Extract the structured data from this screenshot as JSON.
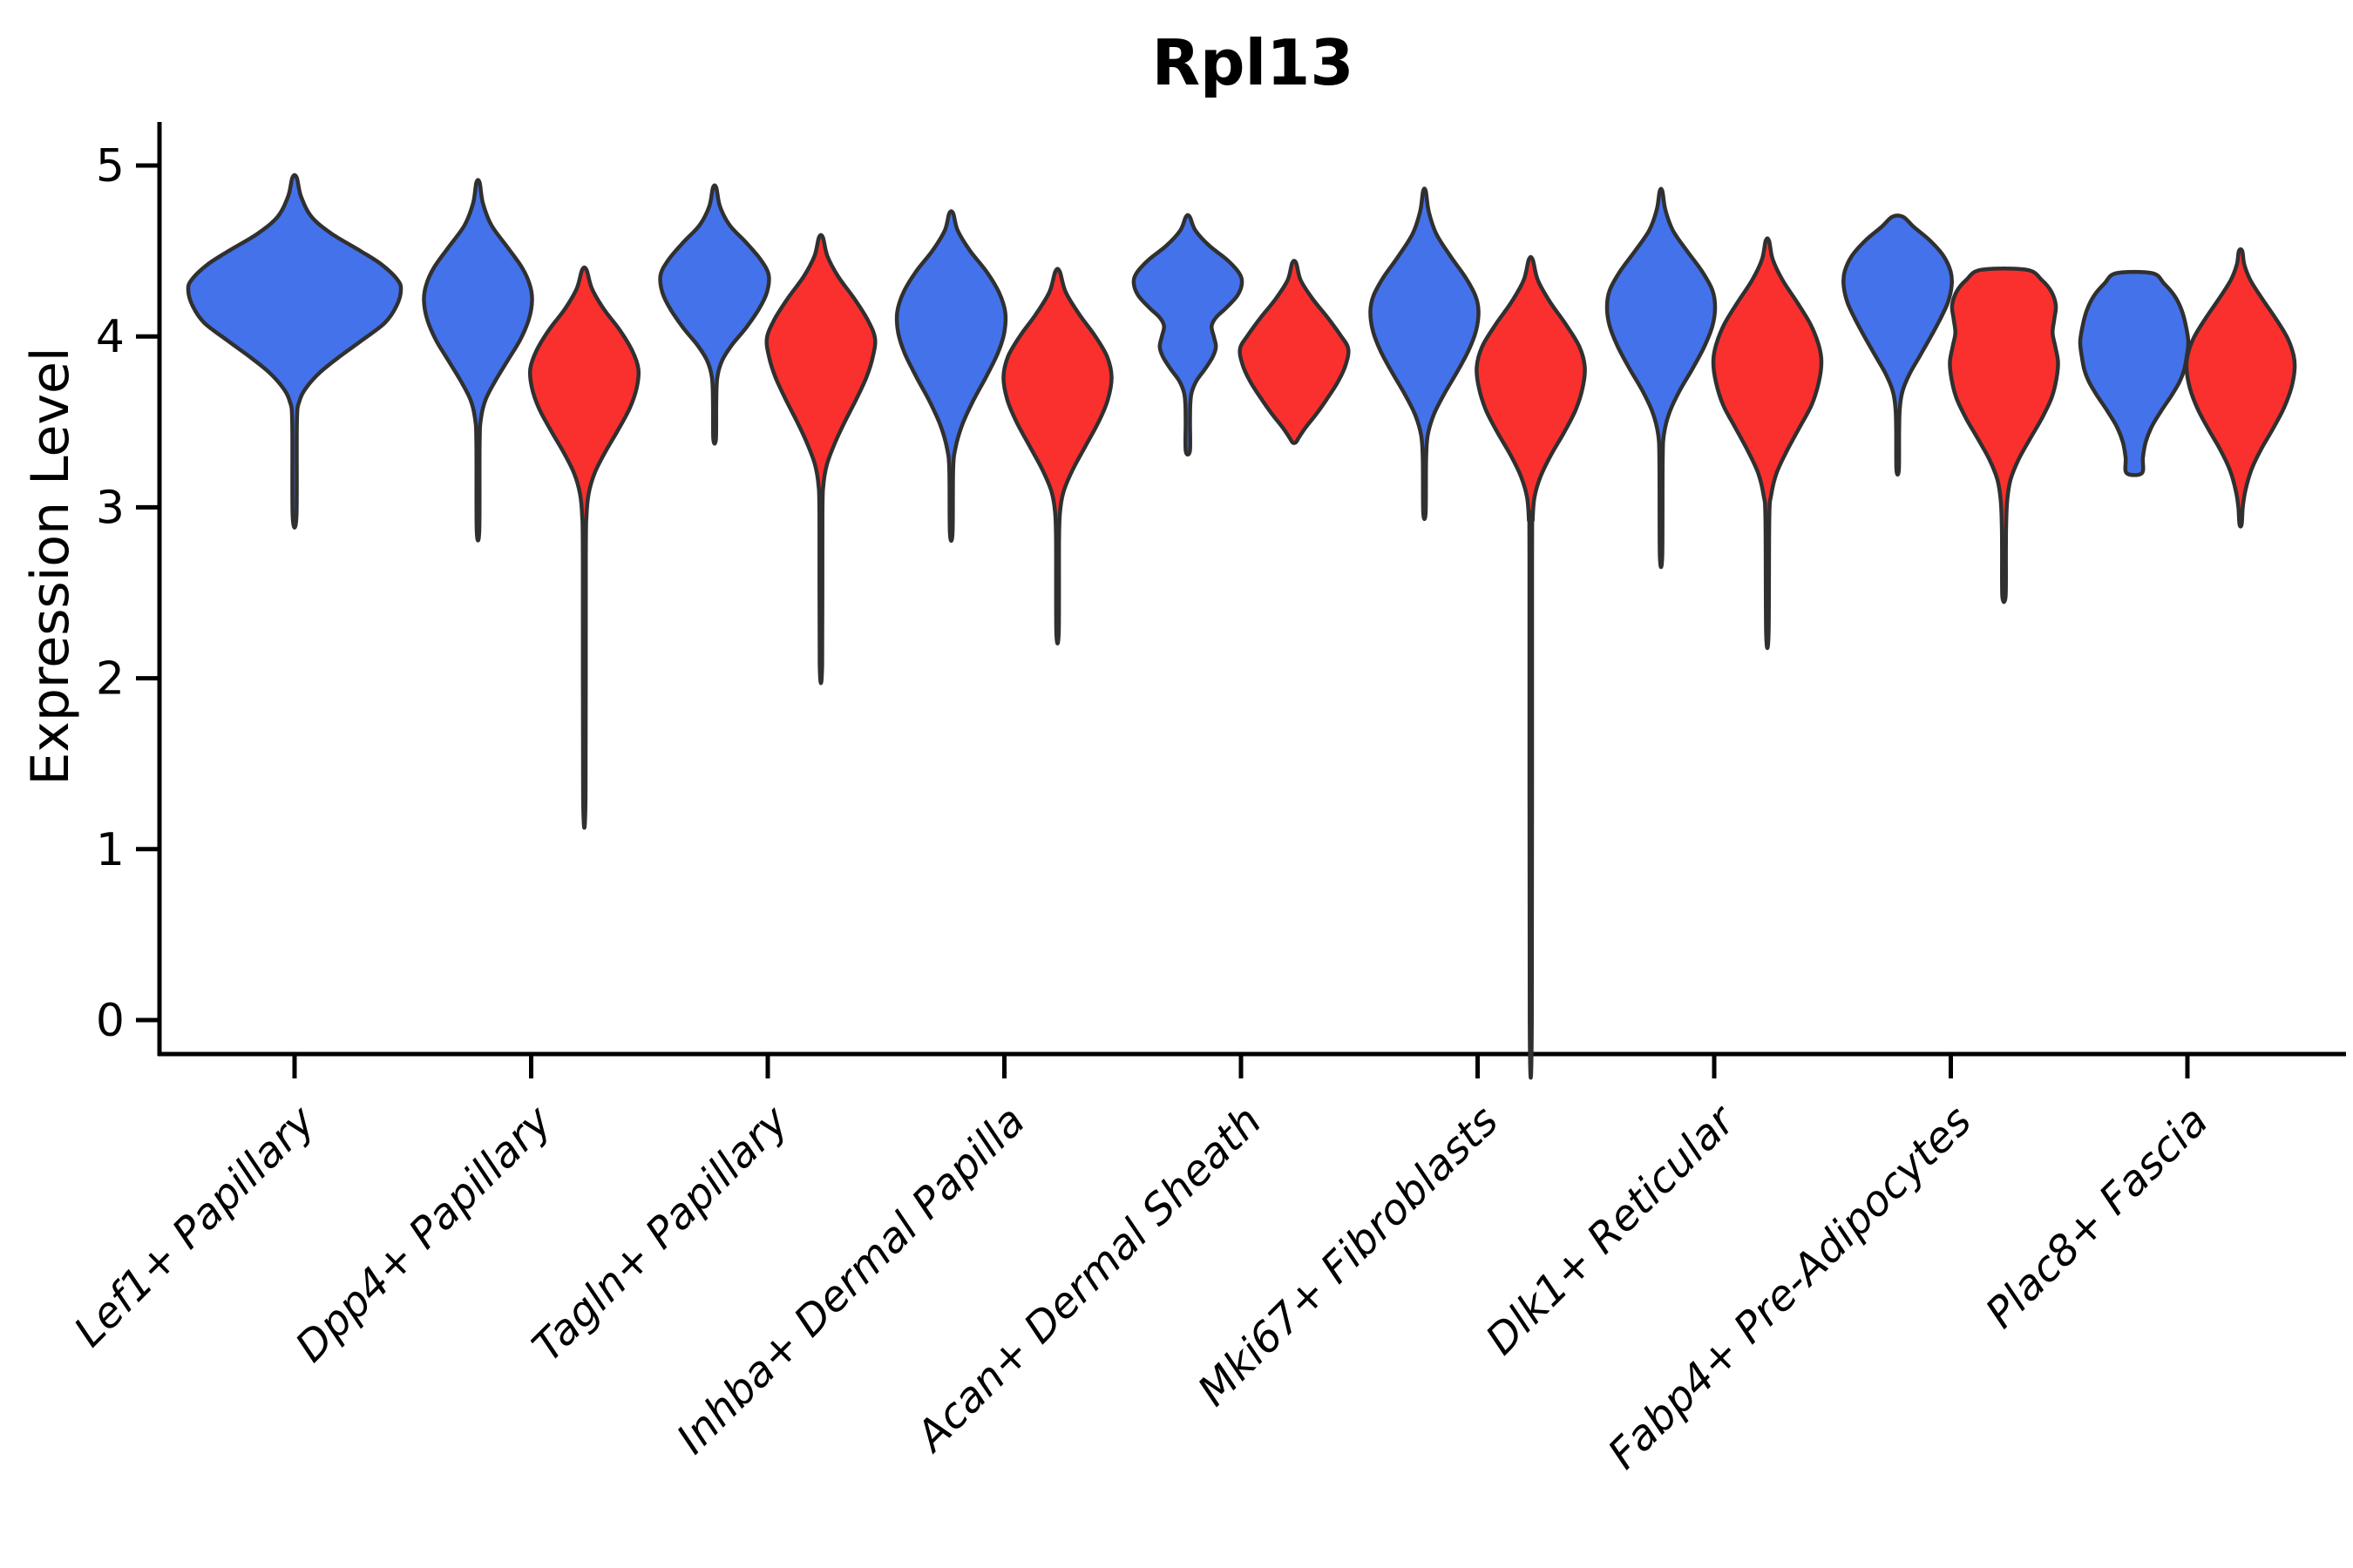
{
  "title": "Rpl13",
  "y_axis_label": "Expression Level",
  "chart_data": {
    "type": "violin",
    "title": "Rpl13",
    "ylabel": "Expression Level",
    "ylim": [
      -0.2,
      5.25
    ],
    "y_ticks": [
      0,
      1,
      2,
      3,
      4,
      5
    ],
    "grid": "off",
    "legend_position": "none",
    "categories": [
      "Lef1+ Papillary",
      "Dpp4+ Papillary",
      "Tagln+ Papillary",
      "Inhba+ Dermal Papilla",
      "Acan+ Dermal Sheath",
      "Mki67+ Fibroblasts",
      "Dlk1+ Reticular",
      "Fabp4+ Pre-Adipocytes",
      "Plac8+ Fascia"
    ],
    "groups": [
      {
        "key": "blue",
        "color": "#4472EA"
      },
      {
        "key": "red",
        "color": "#FA302E"
      }
    ],
    "outline_color": "#303030",
    "violins": [
      {
        "category_index": 0,
        "group": "blue",
        "span": "full",
        "range": [
          2.95,
          4.93
        ],
        "peak": 4.27,
        "shape": [
          [
            4.93,
            0.02
          ],
          [
            4.82,
            0.06
          ],
          [
            4.7,
            0.16
          ],
          [
            4.6,
            0.35
          ],
          [
            4.5,
            0.62
          ],
          [
            4.42,
            0.82
          ],
          [
            4.33,
            0.97
          ],
          [
            4.27,
            1.0
          ],
          [
            4.18,
            0.96
          ],
          [
            4.08,
            0.85
          ],
          [
            3.98,
            0.64
          ],
          [
            3.88,
            0.42
          ],
          [
            3.79,
            0.24
          ],
          [
            3.7,
            0.11
          ],
          [
            3.62,
            0.045
          ],
          [
            3.5,
            0.022
          ],
          [
            2.95,
            0.018
          ]
        ]
      },
      {
        "category_index": 1,
        "group": "blue",
        "span": "half",
        "range": [
          2.87,
          4.9
        ],
        "peak": 4.21,
        "shape": [
          [
            4.9,
            0.03
          ],
          [
            4.78,
            0.09
          ],
          [
            4.65,
            0.25
          ],
          [
            4.52,
            0.55
          ],
          [
            4.4,
            0.82
          ],
          [
            4.3,
            0.96
          ],
          [
            4.21,
            1.0
          ],
          [
            4.1,
            0.94
          ],
          [
            3.98,
            0.78
          ],
          [
            3.86,
            0.55
          ],
          [
            3.74,
            0.32
          ],
          [
            3.63,
            0.14
          ],
          [
            3.52,
            0.055
          ],
          [
            3.38,
            0.03
          ],
          [
            2.87,
            0.025
          ]
        ]
      },
      {
        "category_index": 1,
        "group": "red",
        "span": "half",
        "range": [
          1.3,
          4.39
        ],
        "peak": 3.81,
        "shape": [
          [
            4.39,
            0.04
          ],
          [
            4.28,
            0.14
          ],
          [
            4.16,
            0.36
          ],
          [
            4.04,
            0.65
          ],
          [
            3.92,
            0.88
          ],
          [
            3.81,
            1.0
          ],
          [
            3.7,
            0.97
          ],
          [
            3.58,
            0.84
          ],
          [
            3.45,
            0.62
          ],
          [
            3.32,
            0.38
          ],
          [
            3.2,
            0.19
          ],
          [
            3.08,
            0.08
          ],
          [
            2.95,
            0.04
          ],
          [
            2.7,
            0.028
          ],
          [
            1.3,
            0.022
          ]
        ]
      },
      {
        "category_index": 2,
        "group": "blue",
        "span": "half",
        "range": [
          3.4,
          4.87
        ],
        "peak": 4.36,
        "shape": [
          [
            4.87,
            0.03
          ],
          [
            4.76,
            0.1
          ],
          [
            4.65,
            0.28
          ],
          [
            4.55,
            0.58
          ],
          [
            4.45,
            0.85
          ],
          [
            4.36,
            1.0
          ],
          [
            4.26,
            0.97
          ],
          [
            4.16,
            0.82
          ],
          [
            4.05,
            0.58
          ],
          [
            3.95,
            0.32
          ],
          [
            3.86,
            0.14
          ],
          [
            3.76,
            0.05
          ],
          [
            3.62,
            0.03
          ],
          [
            3.4,
            0.025
          ]
        ]
      },
      {
        "category_index": 2,
        "group": "red",
        "span": "half",
        "range": [
          2.08,
          4.58
        ],
        "peak": 3.99,
        "shape": [
          [
            4.58,
            0.035
          ],
          [
            4.47,
            0.12
          ],
          [
            4.35,
            0.32
          ],
          [
            4.22,
            0.62
          ],
          [
            4.1,
            0.86
          ],
          [
            3.99,
            1.0
          ],
          [
            3.88,
            0.96
          ],
          [
            3.76,
            0.84
          ],
          [
            3.63,
            0.65
          ],
          [
            3.5,
            0.44
          ],
          [
            3.37,
            0.25
          ],
          [
            3.25,
            0.11
          ],
          [
            3.13,
            0.045
          ],
          [
            2.95,
            0.028
          ],
          [
            2.08,
            0.022
          ]
        ]
      },
      {
        "category_index": 3,
        "group": "blue",
        "span": "half",
        "range": [
          2.85,
          4.72
        ],
        "peak": 4.14,
        "shape": [
          [
            4.72,
            0.035
          ],
          [
            4.62,
            0.12
          ],
          [
            4.5,
            0.35
          ],
          [
            4.38,
            0.65
          ],
          [
            4.26,
            0.88
          ],
          [
            4.14,
            1.0
          ],
          [
            4.02,
            0.98
          ],
          [
            3.9,
            0.86
          ],
          [
            3.76,
            0.64
          ],
          [
            3.62,
            0.4
          ],
          [
            3.48,
            0.2
          ],
          [
            3.35,
            0.08
          ],
          [
            3.22,
            0.035
          ],
          [
            2.85,
            0.025
          ]
        ]
      },
      {
        "category_index": 3,
        "group": "red",
        "span": "half",
        "range": [
          2.27,
          4.38
        ],
        "peak": 3.76,
        "shape": [
          [
            4.38,
            0.04
          ],
          [
            4.26,
            0.15
          ],
          [
            4.13,
            0.4
          ],
          [
            4.0,
            0.7
          ],
          [
            3.88,
            0.92
          ],
          [
            3.76,
            1.0
          ],
          [
            3.63,
            0.93
          ],
          [
            3.5,
            0.76
          ],
          [
            3.36,
            0.52
          ],
          [
            3.22,
            0.28
          ],
          [
            3.09,
            0.11
          ],
          [
            2.97,
            0.045
          ],
          [
            2.8,
            0.028
          ],
          [
            2.27,
            0.022
          ]
        ]
      },
      {
        "category_index": 4,
        "group": "blue",
        "span": "half",
        "range": [
          3.33,
          4.7
        ],
        "peak": 4.31,
        "shape": [
          [
            4.7,
            0.035
          ],
          [
            4.62,
            0.14
          ],
          [
            4.53,
            0.4
          ],
          [
            4.45,
            0.72
          ],
          [
            4.37,
            0.95
          ],
          [
            4.31,
            1.0
          ],
          [
            4.24,
            0.92
          ],
          [
            4.17,
            0.72
          ],
          [
            4.11,
            0.52
          ],
          [
            4.06,
            0.44
          ],
          [
            4.0,
            0.48
          ],
          [
            3.94,
            0.52
          ],
          [
            3.88,
            0.46
          ],
          [
            3.81,
            0.32
          ],
          [
            3.74,
            0.16
          ],
          [
            3.67,
            0.07
          ],
          [
            3.6,
            0.045
          ],
          [
            3.5,
            0.04
          ],
          [
            3.33,
            0.038
          ]
        ]
      },
      {
        "category_index": 4,
        "group": "red",
        "span": "half",
        "range": [
          3.38,
          4.43
        ],
        "peak": 3.93,
        "shape": [
          [
            4.43,
            0.035
          ],
          [
            4.33,
            0.12
          ],
          [
            4.22,
            0.34
          ],
          [
            4.11,
            0.62
          ],
          [
            4.01,
            0.85
          ],
          [
            3.93,
            1.0
          ],
          [
            3.84,
            0.96
          ],
          [
            3.74,
            0.82
          ],
          [
            3.64,
            0.62
          ],
          [
            3.55,
            0.42
          ],
          [
            3.47,
            0.22
          ],
          [
            3.41,
            0.09
          ],
          [
            3.38,
            0.03
          ]
        ]
      },
      {
        "category_index": 5,
        "group": "blue",
        "span": "half",
        "range": [
          2.97,
          4.85
        ],
        "peak": 4.15,
        "shape": [
          [
            4.85,
            0.025
          ],
          [
            4.73,
            0.08
          ],
          [
            4.6,
            0.22
          ],
          [
            4.47,
            0.48
          ],
          [
            4.35,
            0.75
          ],
          [
            4.24,
            0.94
          ],
          [
            4.15,
            1.0
          ],
          [
            4.04,
            0.96
          ],
          [
            3.92,
            0.82
          ],
          [
            3.79,
            0.6
          ],
          [
            3.66,
            0.36
          ],
          [
            3.54,
            0.17
          ],
          [
            3.42,
            0.06
          ],
          [
            3.28,
            0.03
          ],
          [
            2.97,
            0.022
          ]
        ]
      },
      {
        "category_index": 5,
        "group": "red",
        "span": "half",
        "range": [
          0.0,
          4.45
        ],
        "peak": 3.82,
        "shape": [
          [
            4.45,
            0.035
          ],
          [
            4.33,
            0.13
          ],
          [
            4.2,
            0.36
          ],
          [
            4.07,
            0.65
          ],
          [
            3.94,
            0.9
          ],
          [
            3.82,
            1.0
          ],
          [
            3.7,
            0.96
          ],
          [
            3.57,
            0.83
          ],
          [
            3.44,
            0.62
          ],
          [
            3.31,
            0.38
          ],
          [
            3.18,
            0.18
          ],
          [
            3.06,
            0.07
          ],
          [
            2.93,
            0.035
          ],
          [
            2.7,
            0.025
          ],
          [
            0.0,
            0.02
          ]
        ]
      },
      {
        "category_index": 6,
        "group": "blue",
        "span": "half",
        "range": [
          2.72,
          4.85
        ],
        "peak": 4.17,
        "shape": [
          [
            4.85,
            0.025
          ],
          [
            4.74,
            0.08
          ],
          [
            4.62,
            0.22
          ],
          [
            4.5,
            0.48
          ],
          [
            4.38,
            0.76
          ],
          [
            4.27,
            0.95
          ],
          [
            4.17,
            1.0
          ],
          [
            4.06,
            0.95
          ],
          [
            3.94,
            0.8
          ],
          [
            3.81,
            0.58
          ],
          [
            3.68,
            0.34
          ],
          [
            3.55,
            0.15
          ],
          [
            3.43,
            0.055
          ],
          [
            3.28,
            0.03
          ],
          [
            2.72,
            0.022
          ]
        ]
      },
      {
        "category_index": 6,
        "group": "red",
        "span": "half",
        "range": [
          2.26,
          4.56
        ],
        "peak": 3.85,
        "shape": [
          [
            4.56,
            0.03
          ],
          [
            4.45,
            0.1
          ],
          [
            4.33,
            0.28
          ],
          [
            4.2,
            0.55
          ],
          [
            4.07,
            0.8
          ],
          [
            3.95,
            0.95
          ],
          [
            3.85,
            1.0
          ],
          [
            3.73,
            0.95
          ],
          [
            3.6,
            0.82
          ],
          [
            3.47,
            0.6
          ],
          [
            3.33,
            0.36
          ],
          [
            3.2,
            0.17
          ],
          [
            3.07,
            0.07
          ],
          [
            2.93,
            0.035
          ],
          [
            2.26,
            0.022
          ]
        ]
      },
      {
        "category_index": 7,
        "group": "blue",
        "span": "half",
        "range": [
          3.22,
          4.7
        ],
        "peak": 4.3,
        "shape": [
          [
            4.7,
            0.1
          ],
          [
            4.64,
            0.3
          ],
          [
            4.56,
            0.6
          ],
          [
            4.47,
            0.85
          ],
          [
            4.38,
            0.98
          ],
          [
            4.3,
            1.0
          ],
          [
            4.2,
            0.93
          ],
          [
            4.09,
            0.77
          ],
          [
            3.98,
            0.58
          ],
          [
            3.88,
            0.4
          ],
          [
            3.78,
            0.22
          ],
          [
            3.68,
            0.09
          ],
          [
            3.58,
            0.04
          ],
          [
            3.45,
            0.028
          ],
          [
            3.22,
            0.022
          ]
        ]
      },
      {
        "category_index": 7,
        "group": "red",
        "span": "half",
        "range": [
          2.48,
          4.39
        ],
        "peak": 3.85,
        "shape": [
          [
            4.39,
            0.42
          ],
          [
            4.33,
            0.7
          ],
          [
            4.26,
            0.88
          ],
          [
            4.18,
            0.96
          ],
          [
            4.1,
            0.93
          ],
          [
            4.02,
            0.9
          ],
          [
            3.94,
            0.95
          ],
          [
            3.85,
            1.0
          ],
          [
            3.75,
            0.97
          ],
          [
            3.64,
            0.88
          ],
          [
            3.52,
            0.7
          ],
          [
            3.4,
            0.48
          ],
          [
            3.28,
            0.27
          ],
          [
            3.16,
            0.12
          ],
          [
            3.04,
            0.06
          ],
          [
            2.9,
            0.04
          ],
          [
            2.75,
            0.035
          ],
          [
            2.48,
            0.03
          ]
        ]
      },
      {
        "category_index": 8,
        "group": "blue",
        "span": "half",
        "range": [
          3.2,
          4.37
        ],
        "peak": 3.97,
        "shape": [
          [
            4.37,
            0.33
          ],
          [
            4.31,
            0.55
          ],
          [
            4.24,
            0.74
          ],
          [
            4.16,
            0.87
          ],
          [
            4.07,
            0.95
          ],
          [
            3.97,
            1.0
          ],
          [
            3.88,
            0.97
          ],
          [
            3.8,
            0.92
          ],
          [
            3.73,
            0.83
          ],
          [
            3.65,
            0.68
          ],
          [
            3.56,
            0.49
          ],
          [
            3.47,
            0.32
          ],
          [
            3.38,
            0.21
          ],
          [
            3.29,
            0.16
          ],
          [
            3.2,
            0.14
          ]
        ]
      },
      {
        "category_index": 8,
        "group": "red",
        "span": "half",
        "range": [
          2.9,
          4.5
        ],
        "peak": 3.81,
        "shape": [
          [
            4.5,
            0.03
          ],
          [
            4.42,
            0.07
          ],
          [
            4.33,
            0.18
          ],
          [
            4.22,
            0.4
          ],
          [
            4.1,
            0.66
          ],
          [
            3.99,
            0.87
          ],
          [
            3.89,
            0.98
          ],
          [
            3.81,
            1.0
          ],
          [
            3.7,
            0.94
          ],
          [
            3.58,
            0.8
          ],
          [
            3.46,
            0.6
          ],
          [
            3.34,
            0.38
          ],
          [
            3.22,
            0.2
          ],
          [
            3.1,
            0.09
          ],
          [
            3.0,
            0.04
          ],
          [
            2.9,
            0.02
          ]
        ]
      }
    ]
  }
}
